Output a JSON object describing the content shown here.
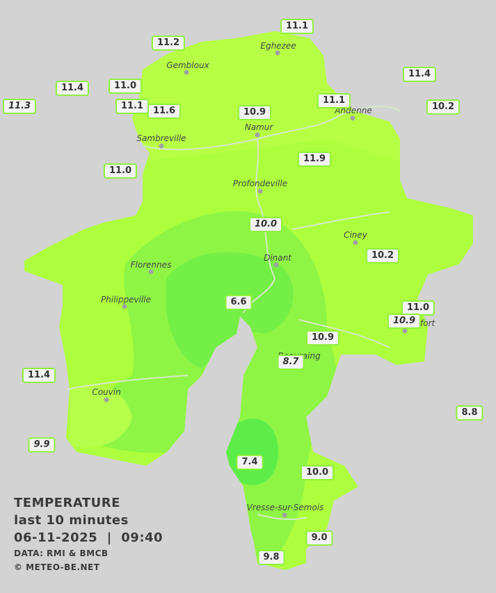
{
  "readings": [
    {
      "text": "11.1"
    },
    {
      "text": "11.2"
    },
    {
      "text": "11.4"
    },
    {
      "text": "11.4"
    },
    {
      "text": "11.0"
    },
    {
      "text": "11.3",
      "italic": true
    },
    {
      "text": "11.1"
    },
    {
      "text": "11.6"
    },
    {
      "text": "10.9"
    },
    {
      "text": "11.1"
    },
    {
      "text": "10.2"
    },
    {
      "text": "11.9"
    },
    {
      "text": "11.0"
    },
    {
      "text": "10.0",
      "italic": true
    },
    {
      "text": "10.2"
    },
    {
      "text": "6.6"
    },
    {
      "text": "11.0"
    },
    {
      "text": "10.9",
      "italic": true
    },
    {
      "text": "10.9"
    },
    {
      "text": "8.7",
      "italic": true
    },
    {
      "text": "11.4"
    },
    {
      "text": "8.8"
    },
    {
      "text": "9.9",
      "italic": true
    },
    {
      "text": "7.4"
    },
    {
      "text": "10.0"
    },
    {
      "text": "9.0"
    },
    {
      "text": "9.8"
    }
  ],
  "cities": [
    "Eghezee",
    "Gembloux",
    "Andenne",
    "Namur",
    "Sambreville",
    "Profondeville",
    "Ciney",
    "Dinant",
    "Florennes",
    "Philippeville",
    "Rochefort",
    "Beauraing",
    "Couvin",
    "Vresse-sur-Semois"
  ],
  "legend": {
    "title": "TEMPERATURE",
    "period": "last 10 minutes",
    "datetime": "06-11-2025  |  09:40",
    "source": "DATA: RMI & BMCB",
    "copyright": "© METEO-BE.NET"
  }
}
